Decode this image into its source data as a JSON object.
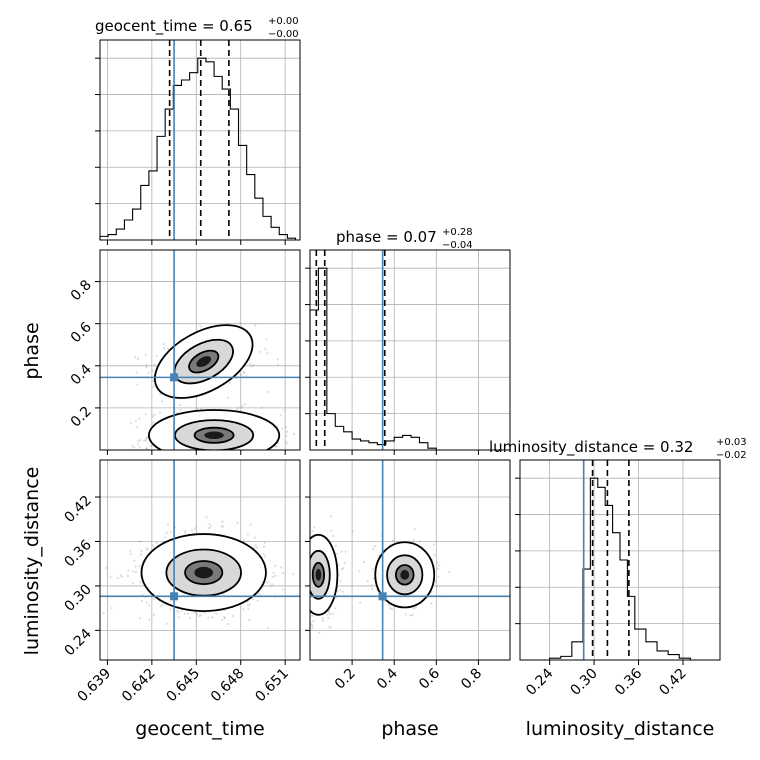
{
  "chart_data": {
    "type": "corner",
    "colors": {
      "truth": "#4682b4",
      "samples": "#9a9a9a",
      "contour": "#000000"
    },
    "parameters": [
      {
        "name": "geocent_time",
        "label": "geocent_time",
        "title_prefix": "geocent_time = ",
        "title_median": "0.65",
        "title_plus": "+0.00",
        "title_minus": "−0.00",
        "range": [
          0.6385,
          0.652
        ],
        "ticks": [
          0.639,
          0.642,
          0.645,
          0.648,
          0.651
        ],
        "tick_labels": [
          "0.639",
          "0.642",
          "0.645",
          "0.648",
          "0.651"
        ],
        "truth": 0.6435,
        "quantiles": [
          0.6432,
          0.6453,
          0.6472
        ]
      },
      {
        "name": "phase",
        "label": "phase",
        "title_prefix": "phase = ",
        "title_median": "0.07",
        "title_plus": "+0.28",
        "title_minus": "−0.04",
        "range": [
          0.0,
          0.95
        ],
        "ticks": [
          0.2,
          0.4,
          0.6,
          0.8
        ],
        "tick_labels": [
          "0.2",
          "0.4",
          "0.6",
          "0.8"
        ],
        "truth": 0.345,
        "quantiles": [
          0.03,
          0.07,
          0.355
        ]
      },
      {
        "name": "luminosity_distance",
        "label": "luminosity_distance",
        "title_prefix": "luminosity_distance = ",
        "title_median": "0.32",
        "title_plus": "+0.03",
        "title_minus": "−0.02",
        "range": [
          0.2,
          0.47
        ],
        "ticks": [
          0.24,
          0.3,
          0.36,
          0.42
        ],
        "tick_labels": [
          "0.24",
          "0.30",
          "0.36",
          "0.42"
        ],
        "truth": 0.286,
        "quantiles": [
          0.298,
          0.318,
          0.347
        ]
      }
    ],
    "histograms": [
      {
        "param": "geocent_time",
        "edges": [
          0.6385,
          0.63905,
          0.6396,
          0.64015,
          0.6407,
          0.64125,
          0.6418,
          0.64235,
          0.6429,
          0.64345,
          0.644,
          0.64455,
          0.6451,
          0.64565,
          0.6462,
          0.64675,
          0.6473,
          0.64785,
          0.6484,
          0.64895,
          0.6495,
          0.65005,
          0.6506,
          0.65115,
          0.6517
        ],
        "counts": [
          2,
          3,
          6,
          11,
          17,
          30,
          38,
          57,
          72,
          85,
          88,
          92,
          100,
          98,
          90,
          83,
          72,
          52,
          36,
          23,
          13,
          7,
          3,
          1
        ]
      },
      {
        "param": "phase",
        "edges": [
          0.0,
          0.04,
          0.08,
          0.12,
          0.16,
          0.2,
          0.24,
          0.28,
          0.32,
          0.36,
          0.4,
          0.44,
          0.48,
          0.52,
          0.56,
          0.6
        ],
        "counts": [
          77,
          100,
          20,
          13,
          10,
          6,
          5,
          4,
          3,
          5,
          7,
          8,
          7,
          4,
          1
        ]
      },
      {
        "param": "luminosity_distance",
        "edges": [
          0.24,
          0.255,
          0.27,
          0.285,
          0.295,
          0.305,
          0.315,
          0.325,
          0.335,
          0.345,
          0.355,
          0.37,
          0.385,
          0.4,
          0.415,
          0.43,
          0.445
        ],
        "counts": [
          1,
          2,
          10,
          50,
          100,
          95,
          85,
          70,
          55,
          35,
          17,
          10,
          5,
          3,
          1,
          0
        ]
      }
    ],
    "scatter_2d": [
      {
        "x": "geocent_time",
        "y": "phase",
        "clusters": [
          {
            "cx": 0.6455,
            "cy": 0.42,
            "sx": 0.0018,
            "sy": 0.07,
            "tilt": 18,
            "n": 420
          },
          {
            "cx": 0.6462,
            "cy": 0.07,
            "sx": 0.0022,
            "sy": 0.06,
            "tilt": 0,
            "n": 520
          }
        ]
      },
      {
        "x": "geocent_time",
        "y": "luminosity_distance",
        "clusters": [
          {
            "cx": 0.6455,
            "cy": 0.318,
            "sx": 0.0021,
            "sy": 0.026,
            "tilt": 0,
            "n": 900
          }
        ]
      },
      {
        "x": "phase",
        "y": "luminosity_distance",
        "clusters": [
          {
            "cx": 0.04,
            "cy": 0.315,
            "sx": 0.045,
            "sy": 0.027,
            "tilt": 0,
            "n": 500
          },
          {
            "cx": 0.45,
            "cy": 0.315,
            "sx": 0.07,
            "sy": 0.022,
            "tilt": 0,
            "n": 300
          }
        ]
      }
    ]
  }
}
